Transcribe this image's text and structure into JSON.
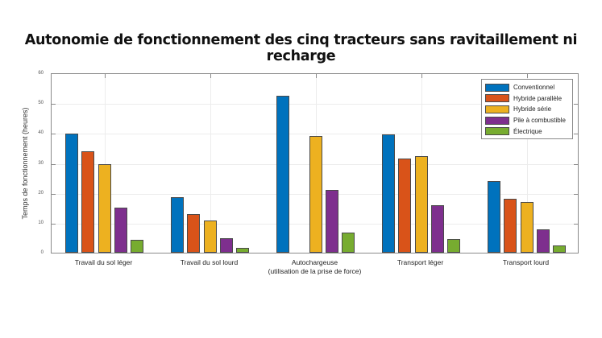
{
  "chart_data": {
    "type": "bar",
    "title": "Autonomie de fonctionnement des cinq tracteurs sans ravitaillement ni recharge",
    "xlabel": "",
    "ylabel": "Temps de fonctionnement (heures)",
    "ylim": [
      0,
      60
    ],
    "yticks": [
      "0",
      "10",
      "20",
      "30",
      "40",
      "50",
      "60"
    ],
    "grid": true,
    "legend_position": "top-right",
    "categories": [
      "Travail du sol léger",
      "Travail du sol lourd",
      "Autochargeuse",
      "Transport léger",
      "Transport lourd"
    ],
    "category_sublabels": [
      "",
      "",
      "(utilisation de la prise de force)",
      "",
      ""
    ],
    "series": [
      {
        "name": "Conventionnel",
        "color": "#0072bd",
        "values": [
          39.7,
          18.5,
          52.5,
          39.5,
          24.0
        ]
      },
      {
        "name": "Hybride parallèle",
        "color": "#d95319",
        "values": [
          34.0,
          12.9,
          0,
          31.4,
          18.0
        ]
      },
      {
        "name": "Hybride série",
        "color": "#edb120",
        "values": [
          29.7,
          10.7,
          39.1,
          32.2,
          17.0
        ]
      },
      {
        "name": "Pile à combustible",
        "color": "#7e2f8e",
        "values": [
          15.0,
          4.8,
          21.0,
          15.8,
          7.9
        ]
      },
      {
        "name": "Électrique",
        "color": "#77ac30",
        "values": [
          4.3,
          1.6,
          6.6,
          4.6,
          2.4
        ]
      }
    ]
  }
}
